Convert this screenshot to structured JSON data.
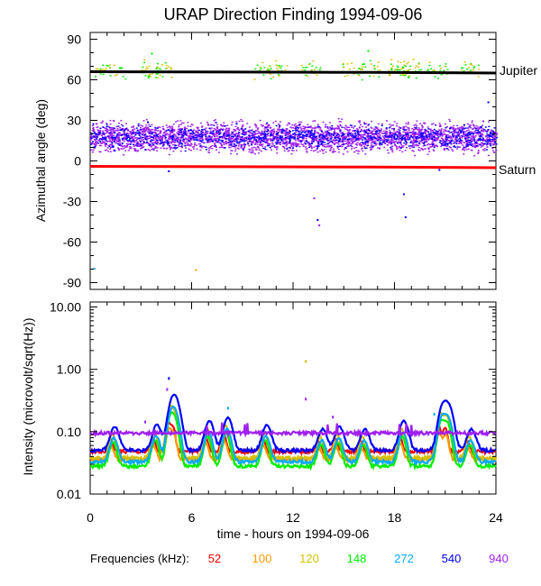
{
  "chart_data": [
    {
      "type": "scatter",
      "title": "URAP Direction Finding  1994-09-06",
      "xlabel": "",
      "ylabel": "Azimuthal angle (deg)",
      "xlim": [
        0,
        24
      ],
      "ylim": [
        -95,
        95
      ],
      "yticks": [
        90,
        60,
        30,
        0,
        -30,
        -60,
        -90
      ],
      "reference_lines": [
        {
          "name": "Jupiter",
          "color": "#000000",
          "points": [
            [
              0,
              66
            ],
            [
              16.5,
              65.5
            ],
            [
              24,
              65
            ]
          ]
        },
        {
          "name": "Saturn",
          "color": "#ff0000",
          "points": [
            [
              0,
              -4
            ],
            [
              16.5,
              -4.5
            ],
            [
              24,
              -5
            ]
          ]
        }
      ],
      "series": [
        {
          "name": "940 kHz band",
          "color": "#a020f0",
          "center": 18,
          "spread": 10
        },
        {
          "name": "540 kHz band",
          "color": "#0000ff",
          "center": 18,
          "spread": 8
        },
        {
          "name": "148 kHz scatter",
          "color": "#00ee00",
          "center": 68,
          "spread": 8
        },
        {
          "name": "120 kHz scatter",
          "color": "#d4c000",
          "center": 68,
          "spread": 8
        }
      ]
    },
    {
      "type": "line",
      "title": "",
      "xlabel": "time - hours on 1994-09-06",
      "ylabel": "Intensity (microvolt/sqrt(Hz))",
      "xlim": [
        0,
        24
      ],
      "xticks": [
        0,
        6,
        12,
        18,
        24
      ],
      "yscale": "log",
      "ylim": [
        0.01,
        12
      ],
      "yticks": [
        "10.00",
        "1.00",
        "0.10",
        "0.01"
      ],
      "ytick_values": [
        10,
        1,
        0.1,
        0.01
      ],
      "series": [
        {
          "name": "52",
          "color": "#ff0000",
          "baseline": 0.048
        },
        {
          "name": "100",
          "color": "#ff9900",
          "baseline": 0.036
        },
        {
          "name": "120",
          "color": "#d4c000",
          "baseline": 0.038
        },
        {
          "name": "148",
          "color": "#00ee00",
          "baseline": 0.028
        },
        {
          "name": "272",
          "color": "#00aaff",
          "baseline": 0.033
        },
        {
          "name": "540",
          "color": "#0000ff",
          "baseline": 0.05
        },
        {
          "name": "940",
          "color": "#a020f0",
          "baseline": 0.095
        }
      ]
    }
  ],
  "labels": {
    "jupiter": "Jupiter",
    "saturn": "Saturn"
  },
  "legend": {
    "prefix": "Frequencies (kHz):",
    "items": [
      {
        "label": "52",
        "color": "#ff0000"
      },
      {
        "label": "100",
        "color": "#ff9900"
      },
      {
        "label": "120",
        "color": "#d4c000"
      },
      {
        "label": "148",
        "color": "#00ee00"
      },
      {
        "label": "272",
        "color": "#00aaff"
      },
      {
        "label": "540",
        "color": "#0000ff"
      },
      {
        "label": "940",
        "color": "#a020f0"
      }
    ]
  }
}
